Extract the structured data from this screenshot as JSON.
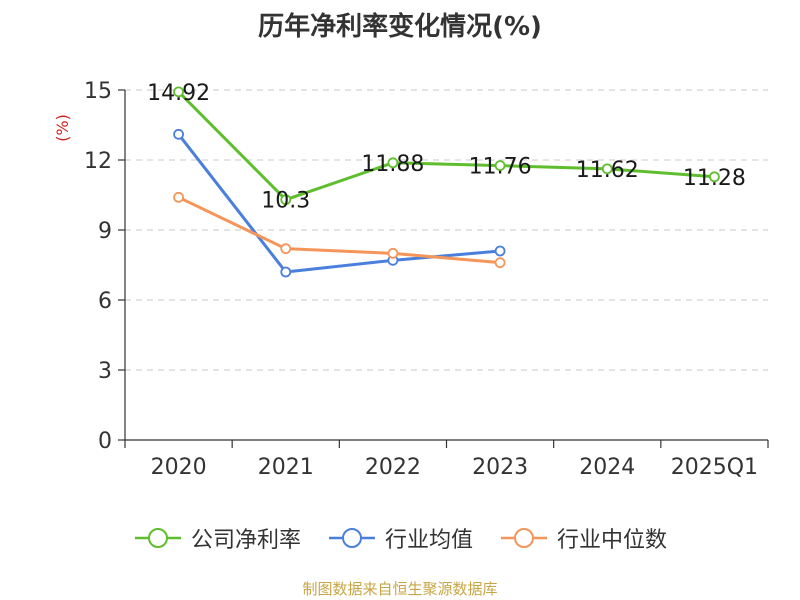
{
  "chart_data": {
    "type": "line",
    "title": "历年净利率变化情况(%)",
    "ylabel": "(%)",
    "categories": [
      "2020",
      "2021",
      "2022",
      "2023",
      "2024",
      "2025Q1"
    ],
    "ylim": [
      0,
      15
    ],
    "yticks": [
      0,
      3,
      6,
      9,
      12,
      15
    ],
    "grid": "horizontal-dashed",
    "legend_position": "bottom",
    "series": [
      {
        "name": "公司净利率",
        "color": "#5fbe2d",
        "values": [
          14.92,
          10.3,
          11.88,
          11.76,
          11.62,
          11.28
        ],
        "labels": [
          "14.92",
          "10.3",
          "11.88",
          "11.76",
          "11.62",
          "11.28"
        ]
      },
      {
        "name": "行业均值",
        "color": "#4a7fdc",
        "values": [
          13.1,
          7.2,
          7.7,
          8.1,
          null,
          null
        ]
      },
      {
        "name": "行业中位数",
        "color": "#f5955a",
        "values": [
          10.4,
          8.2,
          8.0,
          7.6,
          null,
          null
        ]
      }
    ]
  },
  "source_note": "制图数据来自恒生聚源数据库"
}
